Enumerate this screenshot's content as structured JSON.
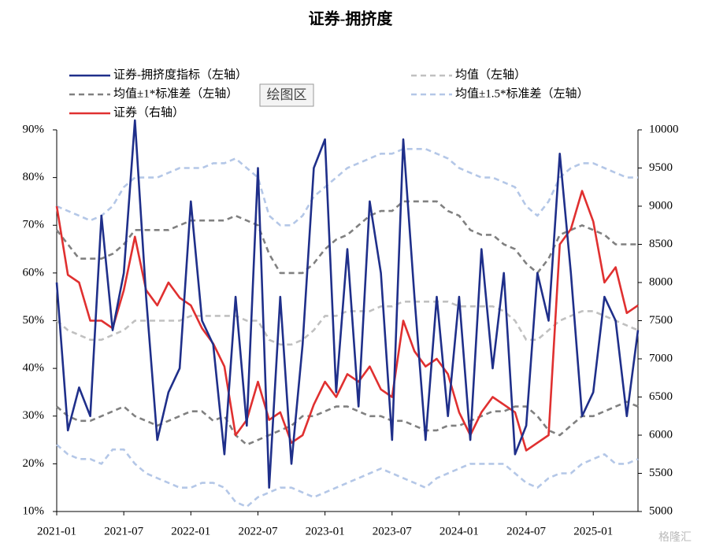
{
  "chart_data": {
    "type": "line",
    "title": "证券-拥挤度",
    "tooltip": "绘图区",
    "watermark": "格隆汇",
    "x": [
      "2021-01",
      "2021-02",
      "2021-03",
      "2021-04",
      "2021-05",
      "2021-06",
      "2021-07",
      "2021-08",
      "2021-09",
      "2021-10",
      "2021-11",
      "2021-12",
      "2022-01",
      "2022-02",
      "2022-03",
      "2022-04",
      "2022-05",
      "2022-06",
      "2022-07",
      "2022-08",
      "2022-09",
      "2022-10",
      "2022-11",
      "2022-12",
      "2023-01",
      "2023-02",
      "2023-03",
      "2023-04",
      "2023-05",
      "2023-06",
      "2023-07",
      "2023-08",
      "2023-09",
      "2023-10",
      "2023-11",
      "2023-12",
      "2024-01",
      "2024-02",
      "2024-03",
      "2024-04",
      "2024-05",
      "2024-06",
      "2024-07",
      "2024-08",
      "2024-09",
      "2024-10",
      "2024-11",
      "2024-12",
      "2025-01",
      "2025-02",
      "2025-03",
      "2025-04",
      "2025-05"
    ],
    "xticks": [
      "2021-01",
      "2021-07",
      "2022-01",
      "2022-07",
      "2023-01",
      "2023-07",
      "2024-01",
      "2024-07",
      "2025-01"
    ],
    "series": [
      {
        "name": "证券-拥挤度指标（左轴）",
        "color": "#1f2f8a",
        "dash": false,
        "values": [
          58,
          27,
          36,
          30,
          72,
          48,
          60,
          92,
          55,
          25,
          35,
          40,
          75,
          50,
          45,
          22,
          55,
          28,
          82,
          15,
          55,
          20,
          45,
          82,
          88,
          35,
          65,
          32,
          75,
          60,
          25,
          88,
          55,
          25,
          55,
          30,
          55,
          25,
          65,
          40,
          60,
          22,
          28,
          60,
          50,
          85,
          60,
          30,
          35,
          55,
          50,
          30,
          48
        ]
      },
      {
        "name": "均值（左轴）",
        "color": "#c0c0c0",
        "dash": true,
        "values": [
          50,
          48,
          47,
          46,
          46,
          47,
          48,
          50,
          50,
          50,
          50,
          50,
          51,
          51,
          51,
          51,
          51,
          50,
          50,
          46,
          45,
          45,
          46,
          48,
          51,
          51,
          52,
          52,
          52,
          53,
          53,
          54,
          54,
          54,
          54,
          54,
          53,
          53,
          53,
          53,
          52,
          50,
          46,
          46,
          48,
          50,
          51,
          52,
          52,
          51,
          50,
          49,
          48
        ]
      },
      {
        "name": "均值±1*标准差（左轴）",
        "color": "#808080",
        "dash": true,
        "values": [
          69,
          66,
          63,
          63,
          63,
          64,
          66,
          69,
          69,
          69,
          69,
          70,
          71,
          71,
          71,
          71,
          72,
          71,
          70,
          64,
          60,
          60,
          60,
          62,
          65,
          67,
          68,
          70,
          72,
          73,
          73,
          75,
          75,
          75,
          75,
          73,
          72,
          69,
          68,
          68,
          66,
          65,
          62,
          60,
          63,
          68,
          69,
          70,
          69,
          68,
          66,
          66,
          66
        ],
        "values_lower": [
          32,
          30,
          29,
          29,
          30,
          31,
          32,
          30,
          29,
          28,
          29,
          30,
          31,
          31,
          29,
          30,
          26,
          24,
          25,
          26,
          27,
          28,
          30,
          30,
          31,
          32,
          32,
          31,
          30,
          30,
          29,
          29,
          28,
          27,
          27,
          28,
          28,
          29,
          30,
          31,
          31,
          32,
          32,
          30,
          27,
          26,
          28,
          30,
          30,
          31,
          32,
          33,
          32
        ]
      },
      {
        "name": "均值±1.5*标准差（左轴）",
        "color": "#b4c7e7",
        "dash": true,
        "values": [
          74,
          73,
          72,
          71,
          72,
          74,
          78,
          80,
          80,
          80,
          81,
          82,
          82,
          82,
          83,
          83,
          84,
          82,
          80,
          72,
          70,
          70,
          72,
          76,
          78,
          80,
          82,
          83,
          84,
          85,
          85,
          86,
          86,
          86,
          85,
          84,
          82,
          81,
          80,
          80,
          79,
          78,
          74,
          72,
          75,
          80,
          82,
          83,
          83,
          82,
          81,
          80,
          80
        ],
        "values_lower": [
          24,
          22,
          21,
          21,
          20,
          23,
          23,
          20,
          18,
          17,
          16,
          15,
          15,
          16,
          16,
          15,
          12,
          11,
          13,
          14,
          15,
          15,
          14,
          13,
          14,
          15,
          16,
          17,
          18,
          19,
          18,
          17,
          16,
          15,
          17,
          18,
          19,
          20,
          20,
          20,
          20,
          18,
          16,
          15,
          17,
          18,
          18,
          20,
          21,
          22,
          20,
          20,
          21
        ]
      },
      {
        "name": "证券（右轴）",
        "color": "#e03030",
        "dash": false,
        "axis": "y2",
        "values": [
          9000,
          8100,
          8000,
          7500,
          7500,
          7400,
          7900,
          8600,
          7900,
          7700,
          8000,
          7800,
          7700,
          7400,
          7200,
          6900,
          6000,
          6200,
          6700,
          6200,
          6300,
          5900,
          6000,
          6400,
          6700,
          6500,
          6800,
          6700,
          6900,
          6600,
          6500,
          7500,
          7100,
          6900,
          7000,
          6800,
          6300,
          6000,
          6300,
          6500,
          6400,
          6300,
          5800,
          5900,
          6000,
          8500,
          8700,
          9200,
          8800,
          8000,
          8200,
          7600,
          7700
        ]
      }
    ],
    "ylim": [
      10,
      90
    ],
    "yticks": [
      {
        "value": 10,
        "label": "10%"
      },
      {
        "value": 20,
        "label": "20%"
      },
      {
        "value": 30,
        "label": "30%"
      },
      {
        "value": 40,
        "label": "40%"
      },
      {
        "value": 50,
        "label": "50%"
      },
      {
        "value": 60,
        "label": "60%"
      },
      {
        "value": 70,
        "label": "70%"
      },
      {
        "value": 80,
        "label": "80%"
      },
      {
        "value": 90,
        "label": "90%"
      }
    ],
    "y2lim": [
      5000,
      10000
    ],
    "y2ticks": [
      5000,
      5500,
      6000,
      6500,
      7000,
      7500,
      8000,
      8500,
      9000,
      9500,
      10000
    ],
    "grid": false
  }
}
